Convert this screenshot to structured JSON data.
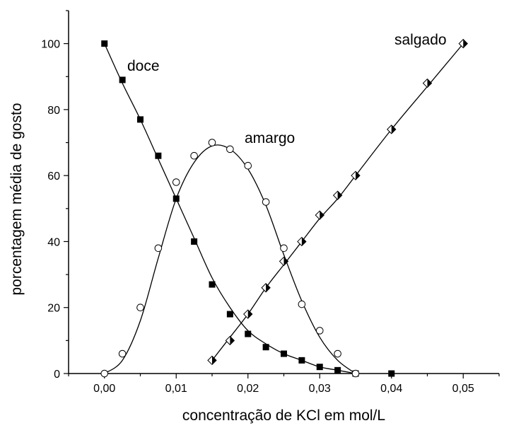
{
  "chart_data": {
    "type": "scatter",
    "xlabel": "concentração de KCl em mol/L",
    "ylabel": "porcentagem média de gosto",
    "xlim": [
      -0.005,
      0.055
    ],
    "ylim": [
      0,
      110
    ],
    "x_ticks": [
      0.0,
      0.01,
      0.02,
      0.03,
      0.04,
      0.05
    ],
    "x_tick_labels": [
      "0,00",
      "0,01",
      "0,02",
      "0,03",
      "0,04",
      "0,05"
    ],
    "y_ticks": [
      0,
      20,
      40,
      60,
      80,
      100
    ],
    "y_tick_labels": [
      "0",
      "20",
      "40",
      "60",
      "80",
      "100"
    ],
    "grid": false,
    "legend": "none",
    "series": [
      {
        "name": "doce",
        "marker": "square",
        "color": "#000000",
        "x": [
          0.0,
          0.0025,
          0.005,
          0.0075,
          0.01,
          0.0125,
          0.015,
          0.0175,
          0.02,
          0.0225,
          0.025,
          0.0275,
          0.03,
          0.0325,
          0.035,
          0.04
        ],
        "y": [
          100,
          89,
          77,
          66,
          53,
          40,
          27,
          18,
          12,
          8,
          6,
          4,
          2,
          1,
          0,
          0
        ],
        "curve_x": [
          0.0,
          0.0025,
          0.005,
          0.0075,
          0.01,
          0.0125,
          0.015,
          0.0175,
          0.02,
          0.0225,
          0.025,
          0.0275,
          0.03,
          0.0325,
          0.035
        ],
        "curve_y": [
          100,
          88,
          77,
          65,
          53,
          41,
          29,
          20,
          13,
          9,
          6,
          4,
          2,
          1,
          0
        ]
      },
      {
        "name": "amargo",
        "marker": "open-circle",
        "color": "#000000",
        "x": [
          0.0,
          0.0025,
          0.005,
          0.0075,
          0.01,
          0.0125,
          0.015,
          0.0175,
          0.02,
          0.0225,
          0.025,
          0.0275,
          0.03,
          0.0325,
          0.035
        ],
        "y": [
          0,
          6,
          20,
          38,
          58,
          66,
          70,
          68,
          63,
          52,
          38,
          21,
          13,
          6,
          0
        ],
        "curve_x": [
          0.0,
          0.0025,
          0.005,
          0.0075,
          0.01,
          0.0125,
          0.015,
          0.0175,
          0.02,
          0.0225,
          0.025,
          0.0275,
          0.03,
          0.0325,
          0.035
        ],
        "curve_y": [
          0,
          4,
          16,
          35,
          53,
          64,
          69,
          68,
          62,
          51,
          36,
          22,
          11,
          4,
          0
        ]
      },
      {
        "name": "salgado",
        "marker": "half-filled-diamond",
        "color": "#000000",
        "x": [
          0.015,
          0.0175,
          0.02,
          0.0225,
          0.025,
          0.0275,
          0.03,
          0.0325,
          0.035,
          0.04,
          0.045,
          0.05
        ],
        "y": [
          4,
          10,
          18,
          26,
          34,
          40,
          48,
          54,
          60,
          74,
          88,
          100
        ],
        "curve_x": [
          0.015,
          0.0175,
          0.02,
          0.0225,
          0.025,
          0.0275,
          0.03,
          0.0325,
          0.035,
          0.04,
          0.045,
          0.05
        ],
        "curve_y": [
          4,
          11,
          18,
          26,
          33,
          40,
          47,
          53,
          60,
          74,
          87,
          100
        ]
      }
    ]
  }
}
